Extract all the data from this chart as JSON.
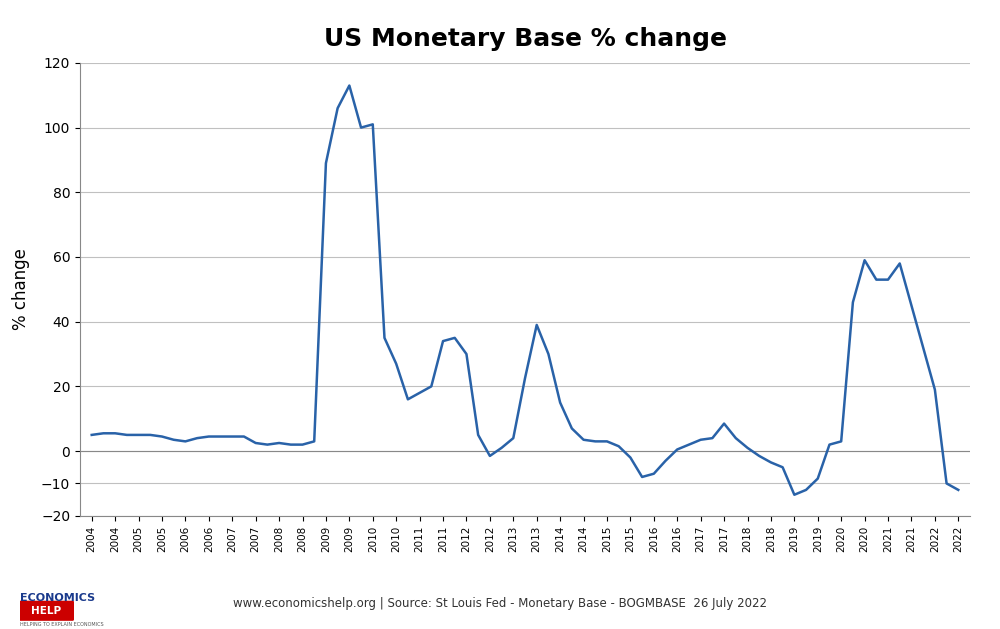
{
  "title": "US Monetary Base % change",
  "ylabel": "% change",
  "ylim": [
    -20,
    120
  ],
  "yticks": [
    -20,
    -10,
    0,
    20,
    40,
    60,
    80,
    100,
    120
  ],
  "line_color": "#2962a8",
  "line_width": 1.8,
  "background_color": "#ffffff",
  "grid_color": "#c0c0c0",
  "footer_text": "www.economicshelp.org | Source: St Louis Fed - Monetary Base - BOGMBASE  26 July 2022",
  "x": [
    2004.0,
    2004.25,
    2004.5,
    2004.75,
    2005.0,
    2005.25,
    2005.5,
    2005.75,
    2006.0,
    2006.25,
    2006.5,
    2006.75,
    2007.0,
    2007.25,
    2007.5,
    2007.75,
    2008.0,
    2008.25,
    2008.5,
    2008.75,
    2009.0,
    2009.25,
    2009.5,
    2009.75,
    2010.0,
    2010.25,
    2010.5,
    2010.75,
    2011.0,
    2011.25,
    2011.5,
    2011.75,
    2012.0,
    2012.25,
    2012.5,
    2012.75,
    2013.0,
    2013.25,
    2013.5,
    2013.75,
    2014.0,
    2014.25,
    2014.5,
    2014.75,
    2015.0,
    2015.25,
    2015.5,
    2015.75,
    2016.0,
    2016.25,
    2016.5,
    2016.75,
    2017.0,
    2017.25,
    2017.5,
    2017.75,
    2018.0,
    2018.25,
    2018.5,
    2018.75,
    2019.0,
    2019.25,
    2019.5,
    2019.75,
    2020.0,
    2020.25,
    2020.5,
    2020.75,
    2021.0,
    2021.25,
    2021.5,
    2021.75,
    2022.0,
    2022.25,
    2022.5
  ],
  "y": [
    5.0,
    5.5,
    5.5,
    5.0,
    5.0,
    5.0,
    4.5,
    3.5,
    3.0,
    4.0,
    4.5,
    4.5,
    4.5,
    4.5,
    2.5,
    2.0,
    2.5,
    2.0,
    2.0,
    3.0,
    89.0,
    106.0,
    113.0,
    100.0,
    101.0,
    35.0,
    27.0,
    16.0,
    18.0,
    20.0,
    34.0,
    35.0,
    30.0,
    5.0,
    -1.5,
    1.0,
    4.0,
    22.5,
    39.0,
    30.0,
    15.0,
    7.0,
    3.5,
    3.0,
    3.0,
    1.5,
    -2.0,
    -8.0,
    -7.0,
    -3.0,
    0.5,
    2.0,
    3.5,
    4.0,
    8.5,
    4.0,
    1.0,
    -1.5,
    -3.5,
    -5.0,
    -13.5,
    -12.0,
    -8.5,
    2.0,
    3.0,
    46.0,
    59.0,
    53.0,
    53.0,
    58.0,
    45.0,
    32.0,
    19.0,
    -10.0,
    -12.0
  ]
}
